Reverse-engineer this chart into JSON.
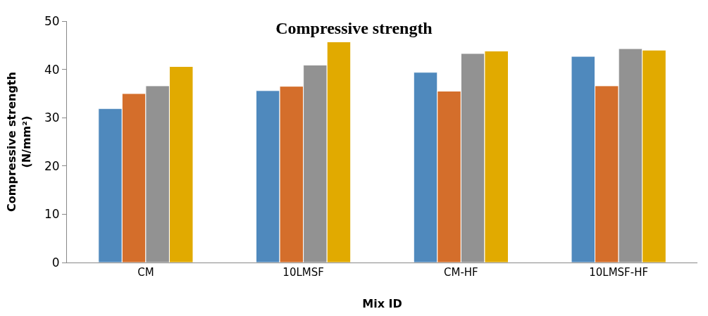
{
  "chart_data": {
    "type": "bar",
    "title": "Compressive strength",
    "xlabel": "Mix ID",
    "ylabel": "Compressive strength (N/mm²)",
    "categories": [
      "CM",
      "10LMSF",
      "CM-HF",
      "10LMSF-HF"
    ],
    "series": [
      {
        "color": "#4f89bd",
        "values": [
          31.9,
          35.6,
          39.4,
          42.7
        ]
      },
      {
        "color": "#d46e2b",
        "values": [
          35.0,
          36.5,
          35.5,
          36.6
        ]
      },
      {
        "color": "#929292",
        "values": [
          36.6,
          40.9,
          43.3,
          44.3
        ]
      },
      {
        "color": "#e1aa00",
        "values": [
          40.6,
          45.7,
          43.8,
          44.0
        ]
      }
    ],
    "ylim": [
      0,
      50
    ],
    "yticks": [
      0,
      10,
      20,
      30,
      40,
      50
    ]
  }
}
